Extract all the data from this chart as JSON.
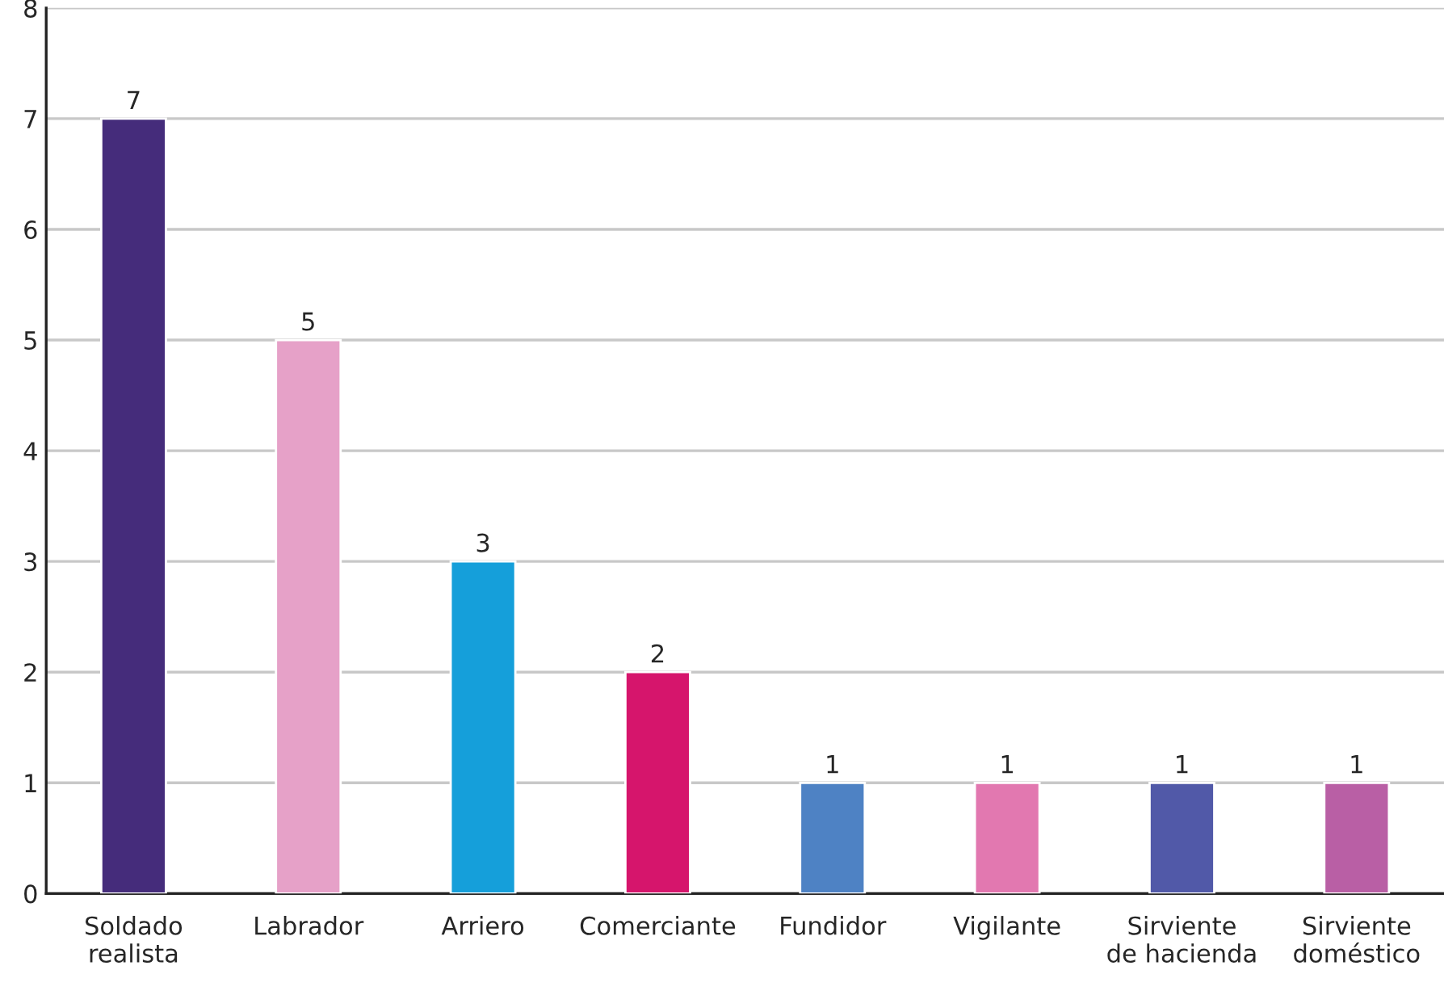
{
  "chart_data": {
    "type": "bar",
    "categories": [
      "Soldado\nrealista",
      "Labrador",
      "Arriero",
      "Comerciante",
      "Fundidor",
      "Vigilante",
      "Sirviente\nde hacienda",
      "Sirviente\ndoméstico"
    ],
    "values": [
      7,
      5,
      3,
      2,
      1,
      1,
      1,
      1
    ],
    "colors": [
      "#452c7b",
      "#e6a1c8",
      "#159fda",
      "#d6156c",
      "#4e82c4",
      "#e278b0",
      "#5159a8",
      "#b95fa5"
    ],
    "ylim": [
      0,
      8
    ],
    "yticks": [
      0,
      1,
      2,
      3,
      4,
      5,
      6,
      7,
      8
    ],
    "grid": "y",
    "data_labels": true
  }
}
